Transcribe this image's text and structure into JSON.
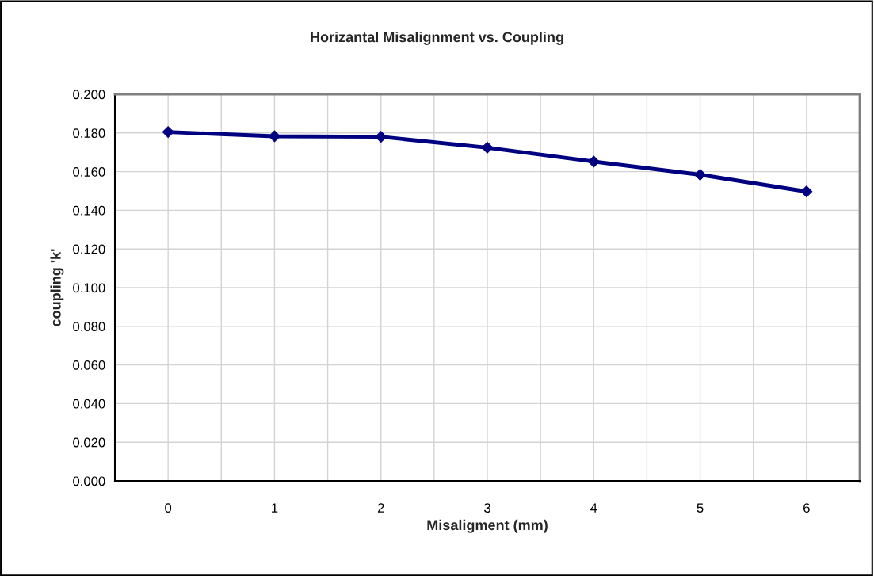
{
  "chart_data": {
    "type": "line",
    "title": "Horizantal Misalignment vs. Coupling",
    "xlabel": "Misaligment (mm)",
    "ylabel": "coupling 'k'",
    "x": [
      0,
      1,
      2,
      3,
      4,
      5,
      6
    ],
    "series": [
      {
        "color": "#000080",
        "values": [
          0.1805,
          0.1783,
          0.178,
          0.1724,
          0.1652,
          0.1584,
          0.1497
        ]
      }
    ],
    "xlim": [
      -0.5,
      6.5
    ],
    "xticks": [
      {
        "value": -0.5,
        "label": null
      },
      0,
      {
        "value": 0.5,
        "label": null
      },
      1,
      {
        "value": 1.5,
        "label": null
      },
      2,
      {
        "value": 2.5,
        "label": null
      },
      3,
      {
        "value": 3.5,
        "label": null
      },
      4,
      {
        "value": 4.5,
        "label": null
      },
      5,
      {
        "value": 5.5,
        "label": null
      },
      6,
      {
        "value": 6.5,
        "label": null
      }
    ],
    "ylim": [
      0,
      0.2
    ],
    "yticks": [
      {
        "value": 0,
        "label": "0.000"
      },
      {
        "value": 0.02,
        "label": "0.020"
      },
      {
        "value": 0.04,
        "label": "0.040"
      },
      {
        "value": 0.06,
        "label": "0.060"
      },
      {
        "value": 0.08,
        "label": "0.080"
      },
      {
        "value": 0.1,
        "label": "0.100"
      },
      {
        "value": 0.12,
        "label": "0.120"
      },
      {
        "value": 0.14,
        "label": "0.140"
      },
      {
        "value": 0.16,
        "label": "0.160"
      },
      {
        "value": 0.18,
        "label": "0.180"
      },
      {
        "value": 0.2,
        "label": "0.200"
      }
    ],
    "grid": true,
    "marker": "diamond",
    "line_style": "solid"
  }
}
